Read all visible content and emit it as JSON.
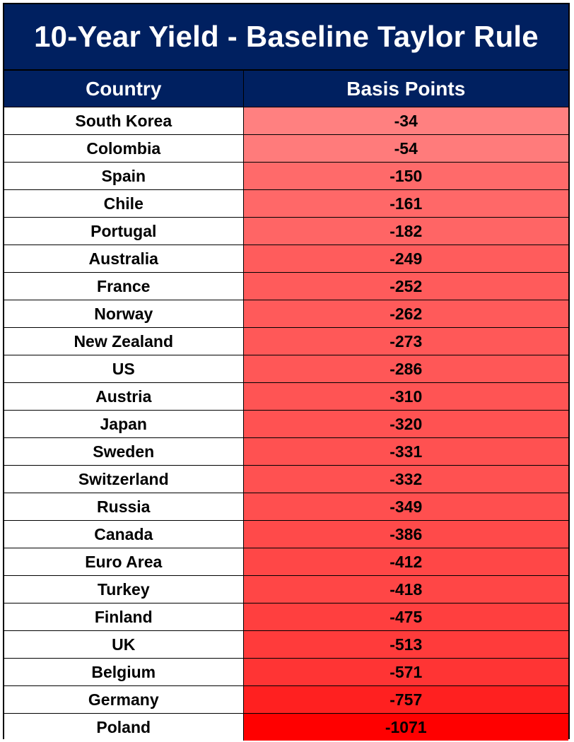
{
  "title": "10-Year Yield - Baseline Taylor Rule",
  "columns": [
    "Country",
    "Basis Points"
  ],
  "colors": {
    "header_bg": "#002060",
    "header_text": "#ffffff",
    "scale_light": "#ff8080",
    "scale_dark": "#ff0000"
  },
  "chart_data": {
    "type": "table",
    "title": "10-Year Yield - Baseline Taylor Rule",
    "columns": [
      "Country",
      "Basis Points"
    ],
    "rows": [
      {
        "country": "South Korea",
        "value": "-34"
      },
      {
        "country": "Colombia",
        "value": "-54"
      },
      {
        "country": "Spain",
        "value": "-150"
      },
      {
        "country": "Chile",
        "value": "-161"
      },
      {
        "country": "Portugal",
        "value": "-182"
      },
      {
        "country": "Australia",
        "value": "-249"
      },
      {
        "country": "France",
        "value": "-252"
      },
      {
        "country": "Norway",
        "value": "-262"
      },
      {
        "country": "New Zealand",
        "value": "-273"
      },
      {
        "country": "US",
        "value": "-286"
      },
      {
        "country": "Austria",
        "value": "-310"
      },
      {
        "country": "Japan",
        "value": "-320"
      },
      {
        "country": "Sweden",
        "value": "-331"
      },
      {
        "country": "Switzerland",
        "value": "-332"
      },
      {
        "country": "Russia",
        "value": "-349"
      },
      {
        "country": "Canada",
        "value": "-386"
      },
      {
        "country": "Euro Area",
        "value": "-412"
      },
      {
        "country": "Turkey",
        "value": "-418"
      },
      {
        "country": "Finland",
        "value": "-475"
      },
      {
        "country": "UK",
        "value": "-513"
      },
      {
        "country": "Belgium",
        "value": "-571"
      },
      {
        "country": "Germany",
        "value": "-757"
      },
      {
        "country": "Poland",
        "value": "-1071"
      }
    ]
  }
}
